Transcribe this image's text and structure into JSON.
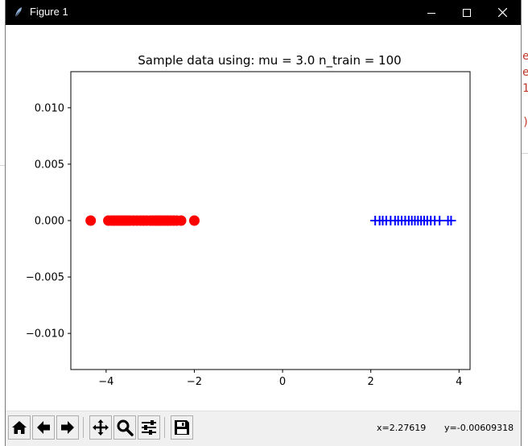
{
  "window": {
    "title": "Figure 1",
    "controls": [
      "minimize",
      "maximize",
      "close"
    ],
    "app_icon": "feather-icon"
  },
  "toolbar": {
    "buttons": [
      {
        "name": "home",
        "icon": "home-icon"
      },
      {
        "name": "back",
        "icon": "arrow-left-icon"
      },
      {
        "name": "forward",
        "icon": "arrow-right-icon"
      },
      {
        "name": "pan",
        "icon": "move-icon"
      },
      {
        "name": "zoom",
        "icon": "magnifier-icon"
      },
      {
        "name": "configure-subplots",
        "icon": "sliders-icon"
      },
      {
        "name": "save",
        "icon": "floppy-disk-icon"
      }
    ],
    "coords": {
      "x": "x=2.27619",
      "y": "y=-0.00609318"
    }
  },
  "colors": {
    "class_red": "#ff0000",
    "class_blue": "#0000ff",
    "titlebar": "#000000",
    "toolbar": "#f0f0f0",
    "background_text": "#c0392b"
  },
  "background": {
    "right_fragments": [
      "e",
      "e",
      "1",
      ")"
    ]
  },
  "chart_data": {
    "type": "scatter",
    "title": "Sample data using: mu = 3.0 n_train = 100",
    "xlim": [
      -4.8,
      4.25
    ],
    "ylim": [
      -0.0132,
      0.0132
    ],
    "xticks": [
      -4,
      -2,
      0,
      2,
      4
    ],
    "xtick_labels": [
      "−4",
      "−2",
      "0",
      "2",
      "4"
    ],
    "yticks": [
      0.01,
      0.005,
      0.0,
      -0.005,
      -0.01
    ],
    "ytick_labels": [
      "0.010",
      "0.005",
      "0.000",
      "−0.005",
      "−0.010"
    ],
    "grid": false,
    "legend": "none",
    "series": [
      {
        "marker": "circle",
        "color": "#ff0000",
        "x": [
          -4.35,
          -3.95,
          -3.88,
          -3.82,
          -3.76,
          -3.7,
          -3.64,
          -3.58,
          -3.52,
          -3.46,
          -3.38,
          -3.3,
          -3.22,
          -3.15,
          -3.08,
          -3.0,
          -2.94,
          -2.88,
          -2.83,
          -2.78,
          -2.72,
          -2.66,
          -2.6,
          -2.54,
          -2.47,
          -2.4,
          -2.3,
          -2.0
        ],
        "y": [
          0,
          0,
          0,
          0,
          0,
          0,
          0,
          0,
          0,
          0,
          0,
          0,
          0,
          0,
          0,
          0,
          0,
          0,
          0,
          0,
          0,
          0,
          0,
          0,
          0,
          0,
          0,
          0
        ]
      },
      {
        "marker": "plus",
        "color": "#0000ff",
        "x": [
          2.1,
          2.2,
          2.27,
          2.35,
          2.45,
          2.55,
          2.62,
          2.7,
          2.78,
          2.86,
          2.93,
          3.0,
          3.07,
          3.14,
          3.21,
          3.28,
          3.36,
          3.45,
          3.56,
          3.75,
          3.82
        ],
        "y": [
          0,
          0,
          0,
          0,
          0,
          0,
          0,
          0,
          0,
          0,
          0,
          0,
          0,
          0,
          0,
          0,
          0,
          0,
          0,
          0,
          0
        ]
      }
    ]
  }
}
